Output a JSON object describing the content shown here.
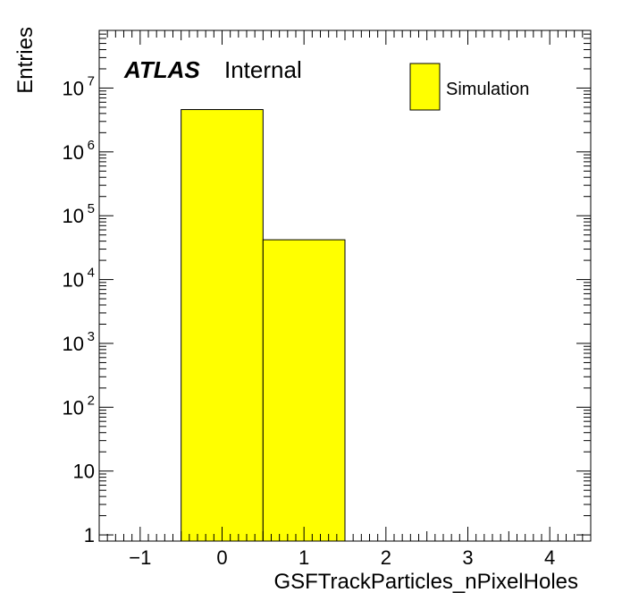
{
  "chart_data": {
    "type": "bar",
    "histogram": true,
    "bins": [
      {
        "low": -0.5,
        "high": 0.5,
        "value": 4600000
      },
      {
        "low": 0.5,
        "high": 1.5,
        "value": 42000
      }
    ],
    "xlabel": "GSFTrackParticles_nPixelHoles",
    "ylabel": "Entries",
    "xlim": [
      -1.5,
      4.5
    ],
    "ylim": [
      0.8,
      80000000
    ],
    "yscale": "log",
    "x_ticks": [
      -1,
      0,
      1,
      2,
      3,
      4
    ],
    "x_tick_labels": [
      "−1",
      "0",
      "1",
      "2",
      "3",
      "4"
    ],
    "y_ticks": [
      {
        "value": 1,
        "base": "1",
        "exp": ""
      },
      {
        "value": 10,
        "base": "10",
        "exp": ""
      },
      {
        "value": 100,
        "base": "10",
        "exp": "2"
      },
      {
        "value": 1000,
        "base": "10",
        "exp": "3"
      },
      {
        "value": 10000,
        "base": "10",
        "exp": "4"
      },
      {
        "value": 100000,
        "base": "10",
        "exp": "5"
      },
      {
        "value": 1000000,
        "base": "10",
        "exp": "6"
      },
      {
        "value": 10000000,
        "base": "10",
        "exp": "7"
      }
    ],
    "legend": {
      "entries": [
        {
          "label": "Simulation",
          "color": "#ffff00"
        }
      ],
      "placement": "top-right"
    },
    "annotation": {
      "atlas": "ATLAS",
      "status": "Internal"
    },
    "bar_color": "#ffff00",
    "grid": false
  }
}
